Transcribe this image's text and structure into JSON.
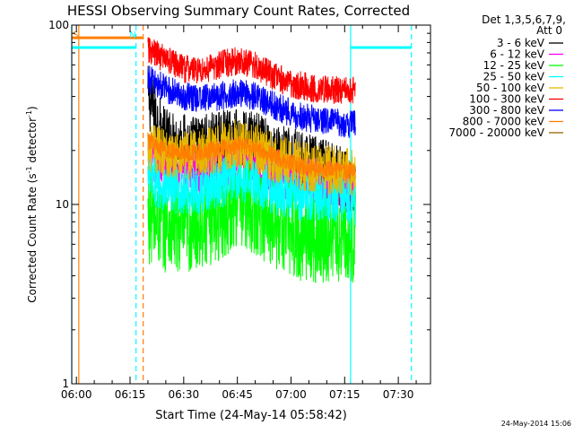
{
  "chart_data": {
    "type": "line",
    "title": "HESSI Observing Summary Count Rates, Corrected",
    "xlabel": "Start Time (24-May-14 05:58:42)",
    "ylabel_main": "Corrected Count Rate (s",
    "ylabel_sup1": "-1",
    "ylabel_mid": " detector",
    "ylabel_sup2": "-1",
    "ylabel_end": ")",
    "y_scale": "log",
    "ylim": [
      1,
      100
    ],
    "xlim": [
      "05:58:42",
      "07:39:00"
    ],
    "x_ticks": [
      "06:00",
      "06:15",
      "06:30",
      "06:45",
      "07:00",
      "07:15",
      "07:30"
    ],
    "y_ticks": [
      {
        "value": 1,
        "label": "1"
      },
      {
        "value": 10,
        "label": "10"
      },
      {
        "value": 100,
        "label": "100"
      }
    ],
    "legend_header": [
      "Det 1,3,5,6,7,9,",
      "Att 0"
    ],
    "legend_placement": "top-right, outside plot",
    "timestamp": "24-May-2014 15:06",
    "flag_labels": [
      {
        "label": "S",
        "time": "06:00",
        "color": "#ff8000"
      },
      {
        "label": "N",
        "time": "06:16",
        "color": "#00ffff"
      }
    ],
    "markers": [
      {
        "time": "05:58:42",
        "style": "solid",
        "color": "#00ffff"
      },
      {
        "time": "06:00:40",
        "style": "solid",
        "color": "#ff8000"
      },
      {
        "time": "06:16:40",
        "style": "dashed",
        "color": "#00ffff"
      },
      {
        "time": "06:18:40",
        "style": "dashed",
        "color": "#ff8000"
      },
      {
        "time": "07:16:40",
        "style": "solid",
        "color": "#00ffff"
      },
      {
        "time": "07:33:40",
        "style": "dashed",
        "color": "#00ffff"
      }
    ],
    "top_bars": [
      {
        "color": "#ff8000",
        "start": "05:58:42",
        "end": "06:18:40",
        "y": 85
      },
      {
        "color": "#00ffff",
        "start": "05:58:42",
        "end": "06:16:40",
        "y": 75
      },
      {
        "color": "#00ffff",
        "start": "07:16:40",
        "end": "07:33:40",
        "y": 75
      }
    ],
    "series": [
      {
        "name": "3 - 6 keV",
        "color": "#000000",
        "noise": 0.18,
        "points": [
          [
            "06:20",
            40
          ],
          [
            "06:22",
            32
          ],
          [
            "06:24",
            24
          ],
          [
            "06:27",
            22
          ],
          [
            "06:33",
            21
          ],
          [
            "06:40",
            22
          ],
          [
            "06:45",
            23
          ],
          [
            "06:50",
            22
          ],
          [
            "06:55",
            19
          ],
          [
            "07:05",
            16.5
          ],
          [
            "07:12",
            15
          ],
          [
            "07:16",
            13.5
          ],
          [
            "07:18",
            12
          ]
        ]
      },
      {
        "name": "6 - 12 keV",
        "color": "#ff00ff",
        "noise": 0.14,
        "points": [
          [
            "06:20",
            18
          ],
          [
            "06:25",
            16
          ],
          [
            "06:32",
            15
          ],
          [
            "06:40",
            16.5
          ],
          [
            "06:46",
            18
          ],
          [
            "06:52",
            16
          ],
          [
            "07:00",
            14
          ],
          [
            "07:08",
            13
          ],
          [
            "07:18",
            12
          ]
        ]
      },
      {
        "name": "12 - 25 keV",
        "color": "#00ff00",
        "noise": 0.26,
        "points": [
          [
            "06:20",
            8.5
          ],
          [
            "06:25",
            7.5
          ],
          [
            "06:32",
            7.2
          ],
          [
            "06:40",
            8.8
          ],
          [
            "06:45",
            10.5
          ],
          [
            "06:50",
            9.5
          ],
          [
            "06:55",
            8
          ],
          [
            "07:02",
            6.8
          ],
          [
            "07:08",
            6.5
          ],
          [
            "07:15",
            6.8
          ],
          [
            "07:18",
            6.5
          ]
        ]
      },
      {
        "name": "25 - 50 keV",
        "color": "#00ffff",
        "noise": 0.14,
        "points": [
          [
            "06:20",
            14
          ],
          [
            "06:25",
            12.5
          ],
          [
            "06:32",
            11.8
          ],
          [
            "06:40",
            13
          ],
          [
            "06:45",
            14.5
          ],
          [
            "06:50",
            13.2
          ],
          [
            "06:56",
            11.8
          ],
          [
            "07:05",
            11
          ],
          [
            "07:12",
            10.8
          ],
          [
            "07:18",
            10.5
          ]
        ]
      },
      {
        "name": "50 - 100 keV",
        "color": "#e8b800",
        "noise": 0.14,
        "points": [
          [
            "06:20",
            21
          ],
          [
            "06:25",
            19.5
          ],
          [
            "06:30",
            18.5
          ],
          [
            "06:38",
            20
          ],
          [
            "06:45",
            22
          ],
          [
            "06:50",
            20.5
          ],
          [
            "06:56",
            18
          ],
          [
            "07:05",
            16
          ],
          [
            "07:12",
            15.5
          ],
          [
            "07:18",
            15
          ]
        ]
      },
      {
        "name": "100 - 300 keV",
        "color": "#ff0000",
        "noise": 0.08,
        "points": [
          [
            "06:20",
            72
          ],
          [
            "06:25",
            65
          ],
          [
            "06:30",
            57
          ],
          [
            "06:35",
            56
          ],
          [
            "06:40",
            60
          ],
          [
            "06:45",
            63
          ],
          [
            "06:50",
            60
          ],
          [
            "06:55",
            52
          ],
          [
            "07:00",
            47
          ],
          [
            "07:08",
            44
          ],
          [
            "07:18",
            43
          ]
        ]
      },
      {
        "name": "300 - 800 keV",
        "color": "#0000ff",
        "noise": 0.08,
        "points": [
          [
            "06:20",
            50
          ],
          [
            "06:25",
            44
          ],
          [
            "06:30",
            40
          ],
          [
            "06:35",
            39
          ],
          [
            "06:40",
            40
          ],
          [
            "06:45",
            42
          ],
          [
            "06:50",
            40
          ],
          [
            "06:56",
            35
          ],
          [
            "07:02",
            31
          ],
          [
            "07:10",
            29
          ],
          [
            "07:18",
            28
          ]
        ]
      },
      {
        "name": "800 - 7000 keV",
        "color": "#ff8000",
        "noise": 0.05,
        "points": [
          [
            "06:20",
            23
          ],
          [
            "06:24",
            20.5
          ],
          [
            "06:28",
            19.5
          ],
          [
            "06:35",
            19.5
          ],
          [
            "06:40",
            20.5
          ],
          [
            "06:46",
            21.5
          ],
          [
            "06:52",
            20
          ],
          [
            "06:58",
            17.5
          ],
          [
            "07:05",
            16
          ],
          [
            "07:12",
            15.5
          ],
          [
            "07:18",
            15.5
          ]
        ]
      },
      {
        "name": "7000 - 20000 keV",
        "color": "#9a6500",
        "noise": 0,
        "points": []
      }
    ]
  }
}
